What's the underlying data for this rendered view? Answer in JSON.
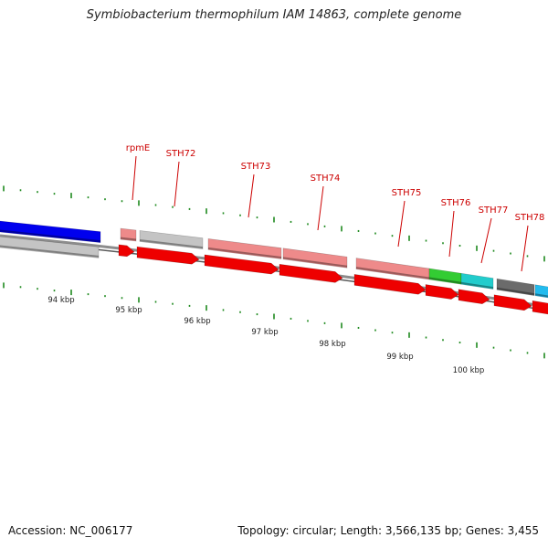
{
  "title": "Symbiobacterium thermophilum IAM 14863, complete genome",
  "footer": {
    "accession": "Accession: NC_006177",
    "topology": "Topology: circular; Length: 3,566,135 bp; Genes: 3,455"
  },
  "axis_labels": [
    "94 kbp",
    "95 kbp",
    "96 kbp",
    "97 kbp",
    "98 kbp",
    "99 kbp",
    "100 kbp"
  ],
  "gene_labels": [
    "rpmE",
    "STH72",
    "STH73",
    "STH74",
    "STH75",
    "STH76",
    "STH77",
    "STH78"
  ],
  "colors": {
    "tick": "#1f8a1f",
    "gene_label": "#cc0000",
    "cds_red": "#ee0000",
    "pink": "#ee8a8a",
    "light_gray": "#c4c4c4",
    "dark_gray": "#6b6b6b",
    "blue": "#0000ee",
    "green": "#33cc33",
    "cyan": "#22cccc"
  }
}
